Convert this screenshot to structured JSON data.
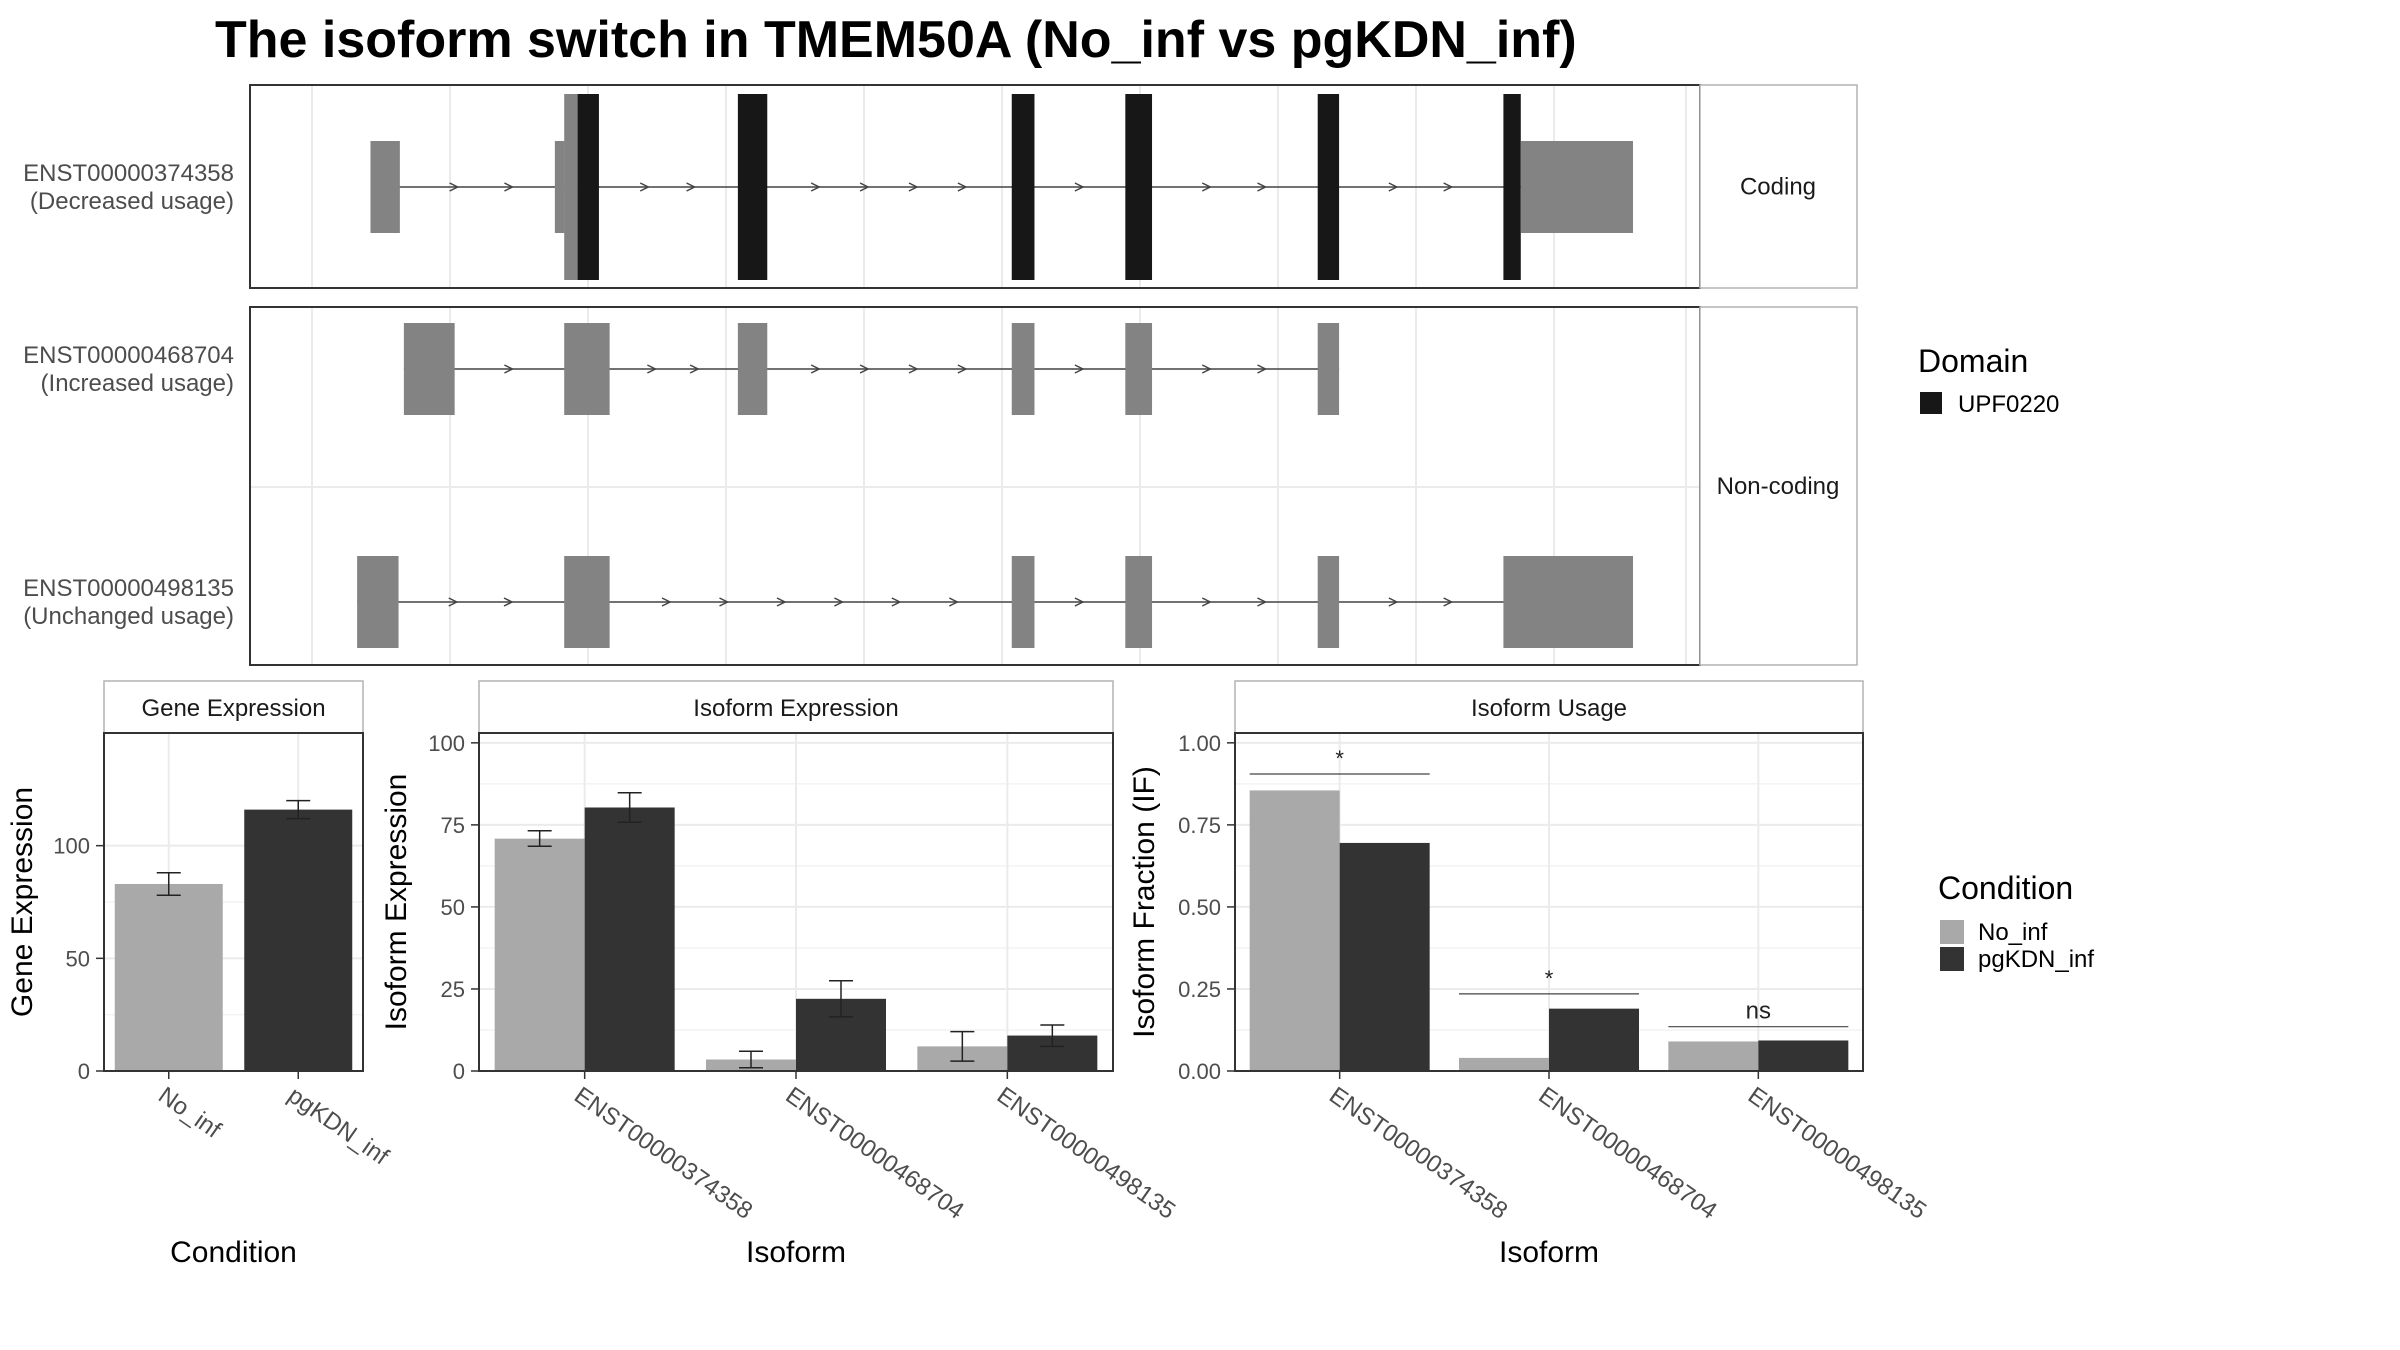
{
  "title": "The isoform switch in TMEM50A (No_inf vs pgKDN_inf)",
  "colors": {
    "domain_fill": "#171717",
    "exon_fill": "#838383",
    "no_inf": "#a9a9a9",
    "pgkdn_inf": "#333333",
    "grid": "#ebebeb",
    "panel_border": "#333333",
    "strip_border": "#b3b3b3",
    "line": "#444444"
  },
  "structure": {
    "facets": [
      "Coding",
      "Non-coding"
    ],
    "legend": {
      "title": "Domain",
      "items": [
        {
          "label": "UPF0220",
          "color": "#171717"
        }
      ]
    },
    "transcripts": [
      {
        "id": "ENST00000374358",
        "usage": "(Decreased usage)",
        "facet": "Coding",
        "exons": [
          [
            0.055,
            0.077,
            "utr"
          ],
          [
            0.2,
            0.21,
            "utr"
          ],
          [
            0.21,
            0.226,
            "cds"
          ],
          [
            0.33,
            0.352,
            "cds"
          ],
          [
            0.535,
            0.552,
            "cds"
          ],
          [
            0.62,
            0.64,
            "cds"
          ],
          [
            0.764,
            0.78,
            "cds"
          ],
          [
            0.903,
            0.916,
            "cds"
          ],
          [
            0.916,
            1.0,
            "utr"
          ]
        ]
      },
      {
        "id": "ENST00000468704",
        "usage": "(Increased usage)",
        "facet": "Non-coding",
        "exons": [
          [
            0.08,
            0.118,
            "nc"
          ],
          [
            0.2,
            0.234,
            "nc"
          ],
          [
            0.33,
            0.352,
            "nc"
          ],
          [
            0.535,
            0.552,
            "nc"
          ],
          [
            0.62,
            0.64,
            "nc"
          ],
          [
            0.764,
            0.78,
            "nc"
          ]
        ]
      },
      {
        "id": "ENST00000498135",
        "usage": "(Unchanged usage)",
        "facet": "Non-coding",
        "exons": [
          [
            0.045,
            0.076,
            "nc"
          ],
          [
            0.2,
            0.234,
            "nc"
          ],
          [
            0.535,
            0.552,
            "nc"
          ],
          [
            0.62,
            0.64,
            "nc"
          ],
          [
            0.764,
            0.78,
            "nc"
          ],
          [
            0.903,
            1.0,
            "nc"
          ]
        ]
      }
    ]
  },
  "chart_data": [
    {
      "type": "bar",
      "title": "Gene Expression",
      "xlabel": "Condition",
      "ylabel": "Gene Expression",
      "ylim": [
        0,
        150
      ],
      "yticks": [
        0,
        50,
        100
      ],
      "categories": [
        "No_inf",
        "pgKDN_inf"
      ],
      "values": [
        83,
        116
      ],
      "errors": [
        [
          78,
          88
        ],
        [
          112,
          120
        ]
      ]
    },
    {
      "type": "bar",
      "title": "Isoform Expression",
      "xlabel": "Isoform",
      "ylabel": "Isoform Expression",
      "ylim": [
        0,
        103
      ],
      "yticks": [
        0,
        25,
        50,
        75,
        100
      ],
      "categories": [
        "ENST00000374358",
        "ENST00000468704",
        "ENST00000498135"
      ],
      "series": [
        {
          "name": "No_inf",
          "values": [
            70.8,
            3.5,
            7.5
          ],
          "errors": [
            [
              68.5,
              73.2
            ],
            [
              1.0,
              6.0
            ],
            [
              3.0,
              12.0
            ]
          ]
        },
        {
          "name": "pgKDN_inf",
          "values": [
            80.3,
            22.0,
            10.8
          ],
          "errors": [
            [
              75.8,
              84.8
            ],
            [
              16.5,
              27.5
            ],
            [
              7.5,
              14.0
            ]
          ]
        }
      ]
    },
    {
      "type": "bar",
      "title": "Isoform Usage",
      "xlabel": "Isoform",
      "ylabel": "Isoform Fraction (IF)",
      "ylim": [
        0,
        1.03
      ],
      "yticks": [
        0,
        0.25,
        0.5,
        0.75,
        1.0
      ],
      "ytick_labels": [
        "0.00",
        "0.25",
        "0.50",
        "0.75",
        "1.00"
      ],
      "categories": [
        "ENST00000374358",
        "ENST00000468704",
        "ENST00000498135"
      ],
      "series": [
        {
          "name": "No_inf",
          "values": [
            0.855,
            0.04,
            0.09
          ]
        },
        {
          "name": "pgKDN_inf",
          "values": [
            0.695,
            0.19,
            0.093
          ]
        }
      ],
      "significance": [
        {
          "label": "*",
          "y": 0.905
        },
        {
          "label": "*",
          "y": 0.235
        },
        {
          "label": "ns",
          "y": 0.135
        }
      ],
      "legend": {
        "title": "Condition",
        "items": [
          "No_inf",
          "pgKDN_inf"
        ]
      }
    }
  ]
}
